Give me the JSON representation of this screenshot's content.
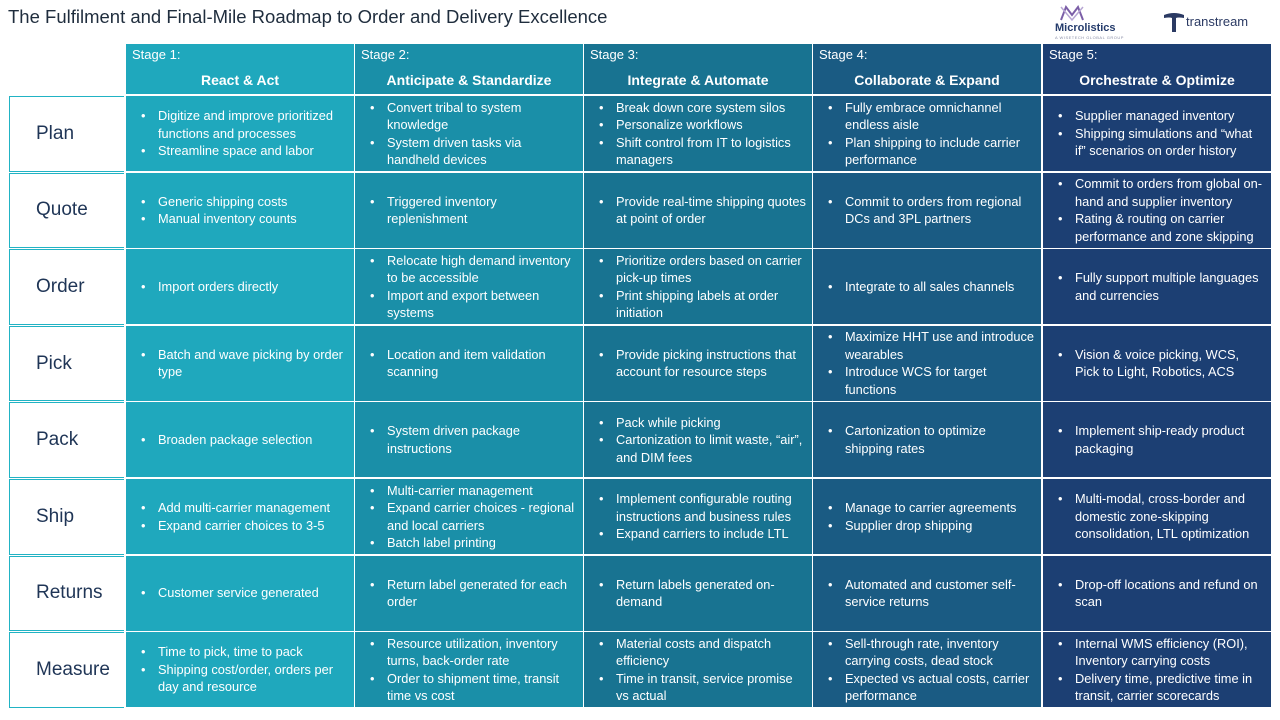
{
  "title": "The Fulfilment and Final-Mile Roadmap to Order and Delivery Excellence",
  "logos": {
    "microlistics": {
      "name": "Microlistics",
      "tagline": "A WISETECH GLOBAL GROUP",
      "color": "#243b6b"
    },
    "transtream": {
      "name": "transtream",
      "color": "#2b3a63"
    }
  },
  "stage_colors": [
    "#1fa8bd",
    "#1a8fa8",
    "#187391",
    "#1a5b83",
    "#1c3f73"
  ],
  "stages": [
    {
      "num": "Stage  1:",
      "name": "React & Act"
    },
    {
      "num": "Stage  2:",
      "name": "Anticipate & Standardize"
    },
    {
      "num": "Stage  3:",
      "name": "Integrate & Automate"
    },
    {
      "num": "Stage  4:",
      "name": "Collaborate & Expand"
    },
    {
      "num": "Stage  5:",
      "name": "Orchestrate & Optimize"
    }
  ],
  "rows": [
    {
      "label": "Plan",
      "cells": [
        [
          "Digitize and improve prioritized functions and processes",
          "Streamline space and labor"
        ],
        [
          "Convert tribal to system knowledge",
          "System driven tasks via handheld devices"
        ],
        [
          "Break down core system silos",
          "Personalize workflows",
          "Shift control from IT to logistics managers"
        ],
        [
          "Fully embrace omnichannel endless aisle",
          "Plan shipping to include carrier performance"
        ],
        [
          "Supplier managed inventory",
          "Shipping simulations and “what if” scenarios on order history"
        ]
      ]
    },
    {
      "label": "Quote",
      "cells": [
        [
          "Generic shipping costs",
          "Manual inventory counts"
        ],
        [
          "Triggered inventory replenishment"
        ],
        [
          "Provide real-time shipping quotes at point of order"
        ],
        [
          "Commit to orders from regional DCs and 3PL partners"
        ],
        [
          "Commit to orders from global on-hand and supplier inventory",
          "Rating & routing on carrier performance and zone skipping"
        ]
      ]
    },
    {
      "label": "Order",
      "cells": [
        [
          "Import orders directly"
        ],
        [
          "Relocate high demand inventory to be accessible",
          "Import and export between systems"
        ],
        [
          "Prioritize orders based on carrier pick-up times",
          "Print shipping labels at order initiation"
        ],
        [
          "Integrate to all sales channels"
        ],
        [
          "Fully support multiple languages and currencies"
        ]
      ]
    },
    {
      "label": "Pick",
      "cells": [
        [
          "Batch and wave picking by order type"
        ],
        [
          "Location and item validation scanning"
        ],
        [
          "Provide picking instructions that account for resource steps"
        ],
        [
          "Maximize HHT use and introduce wearables",
          "Introduce WCS for target functions"
        ],
        [
          "Vision & voice picking, WCS, Pick to Light, Robotics, ACS"
        ]
      ]
    },
    {
      "label": "Pack",
      "cells": [
        [
          "Broaden package selection"
        ],
        [
          "System driven package instructions"
        ],
        [
          "Pack while picking",
          "Cartonization to limit waste, “air”, and DIM fees"
        ],
        [
          "Cartonization to optimize shipping rates"
        ],
        [
          "Implement ship-ready product packaging"
        ]
      ]
    },
    {
      "label": "Ship",
      "cells": [
        [
          "Add multi-carrier management",
          "Expand carrier choices to 3-5"
        ],
        [
          "Multi-carrier management",
          "Expand carrier choices - regional and local carriers",
          "Batch label printing"
        ],
        [
          "Implement configurable routing instructions and business rules",
          "Expand carriers to include LTL"
        ],
        [
          "Manage to carrier agreements",
          "Supplier drop shipping"
        ],
        [
          "Multi-modal, cross-border and domestic zone-skipping consolidation, LTL optimization"
        ]
      ]
    },
    {
      "label": "Returns",
      "cells": [
        [
          "Customer service generated"
        ],
        [
          "Return label generated for each order"
        ],
        [
          "Return labels generated on-demand"
        ],
        [
          "Automated and customer self-service returns"
        ],
        [
          "Drop-off locations and refund on scan"
        ]
      ]
    },
    {
      "label": "Measure",
      "cells": [
        [
          "Time to pick, time to pack",
          "Shipping cost/order, orders per day and resource"
        ],
        [
          "Resource utilization, inventory turns, back-order rate",
          "Order to shipment time, transit time vs cost"
        ],
        [
          "Material costs and dispatch efficiency",
          "Time in transit, service promise vs actual"
        ],
        [
          "Sell-through rate, inventory carrying costs, dead stock",
          "Expected vs actual costs, carrier performance"
        ],
        [
          "Internal WMS efficiency (ROI), Inventory carrying costs",
          "Delivery time, predictive time in transit, carrier scorecards"
        ]
      ]
    }
  ]
}
